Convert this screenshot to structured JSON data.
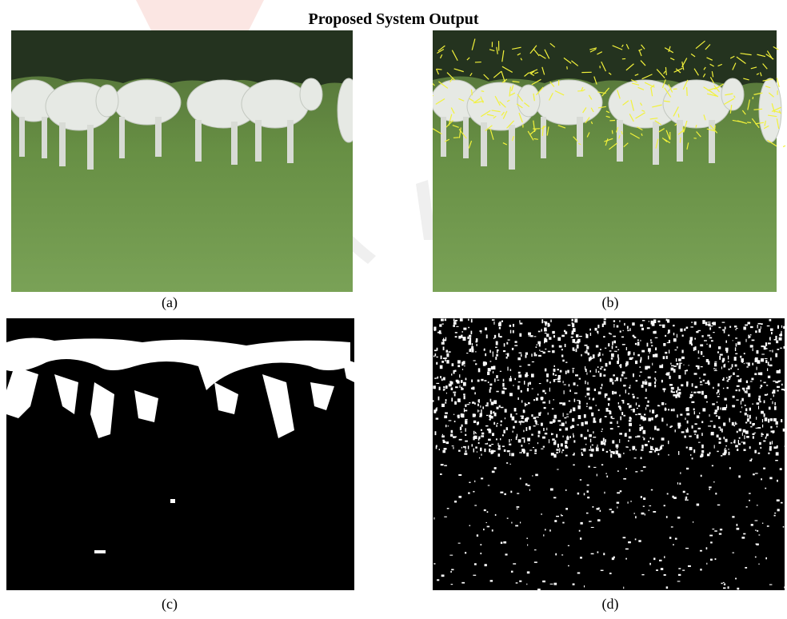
{
  "header": {
    "title": "Proposed System Output"
  },
  "figures": [
    {
      "label": "(a)"
    },
    {
      "label": "(b)"
    },
    {
      "label": "(c)"
    },
    {
      "label": "(d)"
    }
  ]
}
